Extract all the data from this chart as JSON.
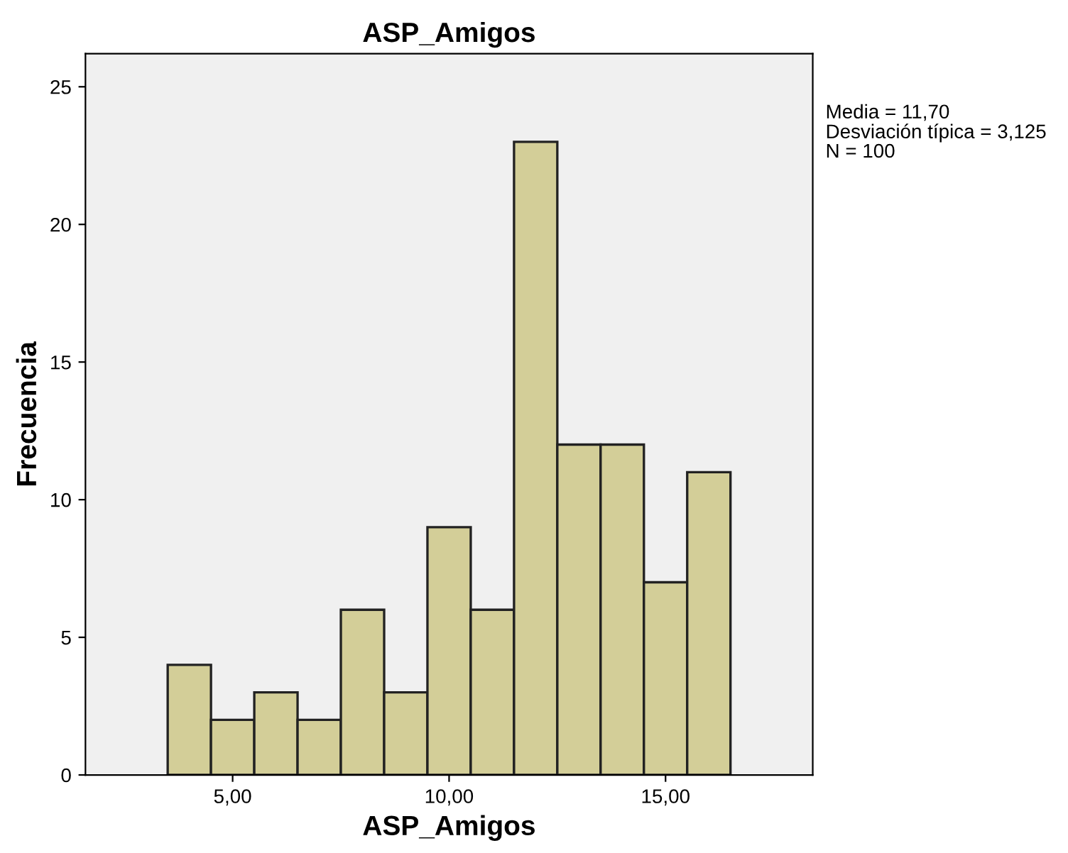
{
  "chart_data": {
    "type": "histogram",
    "title": "ASP_Amigos",
    "xlabel": "ASP_Amigos",
    "ylabel": "Frecuencia",
    "bins": [
      3.5,
      4.5,
      5.5,
      6.5,
      7.5,
      8.5,
      9.5,
      10.5,
      11.5,
      12.5,
      13.5,
      14.5,
      15.5,
      16.5
    ],
    "values": [
      4,
      2,
      3,
      2,
      6,
      3,
      9,
      6,
      23,
      12,
      12,
      7,
      11
    ],
    "color": "#d3ce98",
    "xlim": [
      1.6,
      18.4
    ],
    "xticks": [
      {
        "value": 5,
        "label": "5,00"
      },
      {
        "value": 10,
        "label": "10,00"
      },
      {
        "value": 15,
        "label": "15,00"
      }
    ],
    "ylim": [
      0,
      26.2
    ],
    "yticks": [
      0,
      5,
      10,
      15,
      20,
      25
    ],
    "grid": false,
    "annotations": [
      "Media = 11,70",
      "Desviación típica = 3,125",
      "N = 100"
    ]
  }
}
